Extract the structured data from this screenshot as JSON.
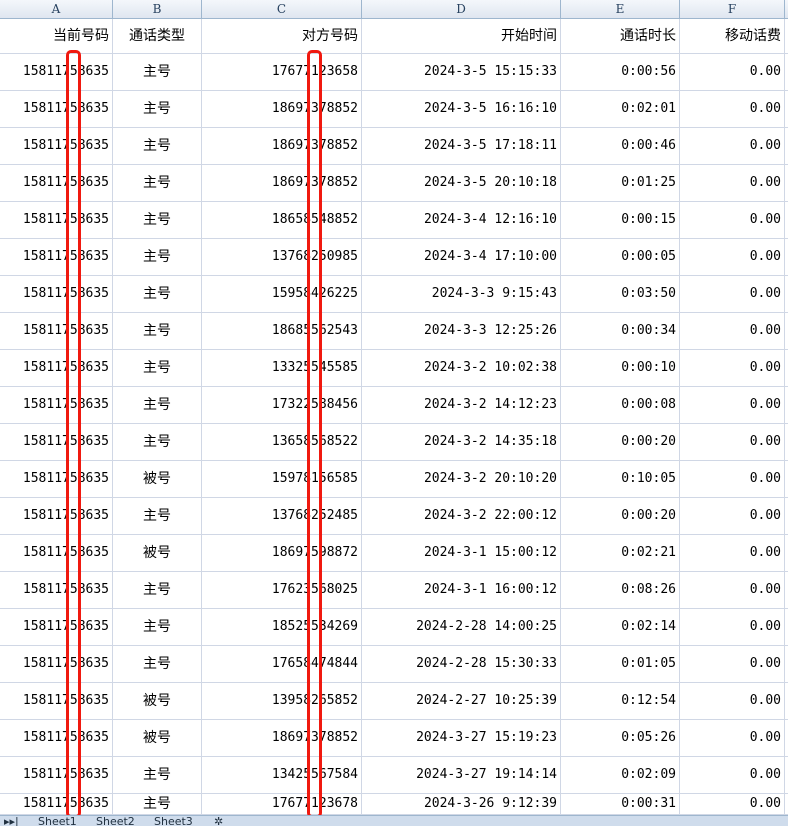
{
  "columns": [
    "A",
    "B",
    "C",
    "D",
    "E",
    "F"
  ],
  "headers": [
    "当前号码",
    "通话类型",
    "对方号码",
    "开始时间",
    "通话时长",
    "移动话费"
  ],
  "rows": [
    [
      "15811758635",
      "主号",
      "17677123658",
      "2024-3-5 15:15:33",
      "0:00:56",
      "0.00"
    ],
    [
      "15811758635",
      "主号",
      "18697378852",
      "2024-3-5 16:16:10",
      "0:02:01",
      "0.00"
    ],
    [
      "15811758635",
      "主号",
      "18697378852",
      "2024-3-5 17:18:11",
      "0:00:46",
      "0.00"
    ],
    [
      "15811758635",
      "主号",
      "18697378852",
      "2024-3-5 20:10:18",
      "0:01:25",
      "0.00"
    ],
    [
      "15811758635",
      "主号",
      "18658548852",
      "2024-3-4 12:16:10",
      "0:00:15",
      "0.00"
    ],
    [
      "15811758635",
      "主号",
      "13768250985",
      "2024-3-4 17:10:00",
      "0:00:05",
      "0.00"
    ],
    [
      "15811758635",
      "主号",
      "15958426225",
      "2024-3-3 9:15:43",
      "0:03:50",
      "0.00"
    ],
    [
      "15811758635",
      "主号",
      "18685562543",
      "2024-3-3 12:25:26",
      "0:00:34",
      "0.00"
    ],
    [
      "15811758635",
      "主号",
      "13325545585",
      "2024-3-2 10:02:38",
      "0:00:10",
      "0.00"
    ],
    [
      "15811758635",
      "主号",
      "17322588456",
      "2024-3-2 14:12:23",
      "0:00:08",
      "0.00"
    ],
    [
      "15811758635",
      "主号",
      "13658568522",
      "2024-3-2 14:35:18",
      "0:00:20",
      "0.00"
    ],
    [
      "15811758635",
      "被号",
      "15978156585",
      "2024-3-2 20:10:20",
      "0:10:05",
      "0.00"
    ],
    [
      "15811758635",
      "主号",
      "13768252485",
      "2024-3-2 22:00:12",
      "0:00:20",
      "0.00"
    ],
    [
      "15811758635",
      "被号",
      "18697598872",
      "2024-3-1 15:00:12",
      "0:02:21",
      "0.00"
    ],
    [
      "15811758635",
      "主号",
      "17623568025",
      "2024-3-1 16:00:12",
      "0:08:26",
      "0.00"
    ],
    [
      "15811758635",
      "主号",
      "18525534269",
      "2024-2-28 14:00:25",
      "0:02:14",
      "0.00"
    ],
    [
      "15811758635",
      "主号",
      "17658474844",
      "2024-2-28 15:30:33",
      "0:01:05",
      "0.00"
    ],
    [
      "15811758635",
      "被号",
      "13958265852",
      "2024-2-27 10:25:39",
      "0:12:54",
      "0.00"
    ],
    [
      "15811758635",
      "被号",
      "18697378852",
      "2024-3-27 15:19:23",
      "0:05:26",
      "0.00"
    ],
    [
      "15811758635",
      "主号",
      "13425567584",
      "2024-3-27 19:14:14",
      "0:02:09",
      "0.00"
    ],
    [
      "15811758635",
      "主号",
      "17677123678",
      "2024-3-26 9:12:39",
      "0:00:31",
      "0.00"
    ]
  ],
  "sheet_tabs": [
    "Sheet1",
    "Sheet2",
    "Sheet3"
  ],
  "colors": {
    "redaction": "#f0190f",
    "grid": "#d0d7e5"
  }
}
